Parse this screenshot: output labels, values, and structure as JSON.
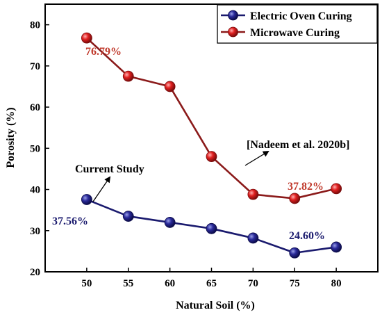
{
  "chart_data": {
    "type": "line",
    "xlabel": "Natural Soil (%)",
    "ylabel": "Porosity (%)",
    "x": [
      50,
      55,
      60,
      65,
      70,
      75,
      80
    ],
    "xlim": [
      45,
      85
    ],
    "ylim": [
      20,
      85
    ],
    "xticks": [
      50,
      55,
      60,
      65,
      70,
      75,
      80
    ],
    "yticks": [
      20,
      30,
      40,
      50,
      60,
      70,
      80
    ],
    "grid": false,
    "legend_position": "top-right",
    "series": [
      {
        "name": "Electric Oven Curing",
        "color": "#1a1a6e",
        "line_color": "#1a1a6e",
        "values": [
          37.56,
          33.5,
          32.0,
          30.5,
          28.2,
          24.6,
          26.0
        ]
      },
      {
        "name": "Microwave Curing",
        "color": "#d42020",
        "line_color": "#8b1a1a",
        "values": [
          76.79,
          67.5,
          65.0,
          48.0,
          38.8,
          37.82,
          40.2
        ]
      }
    ],
    "data_labels": [
      {
        "text": "76.79%",
        "series": 1,
        "color": "#c0392b"
      },
      {
        "text": "37.82%",
        "series": 1,
        "color": "#c0392b"
      },
      {
        "text": "37.56%",
        "series": 0,
        "color": "#1a1a6e"
      },
      {
        "text": "24.60%",
        "series": 0,
        "color": "#1a1a6e"
      }
    ],
    "annotations": [
      {
        "text": "Current Study",
        "series": 0
      },
      {
        "text": "[Nadeem et al. 2020b]",
        "series": 1
      }
    ]
  }
}
